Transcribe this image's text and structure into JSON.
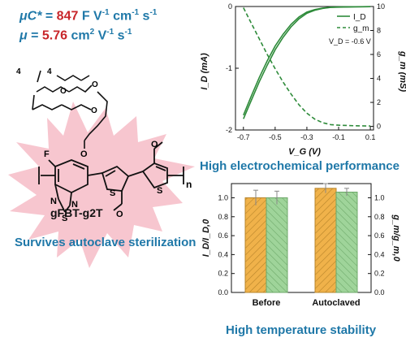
{
  "metrics": {
    "capacitance_symbol": "μC*",
    "capacitance_eq": " = ",
    "capacitance_value": "847",
    "capacitance_unit": " F V",
    "capacitance_unit_exp1": "-1",
    "capacitance_unit_mid": " cm",
    "capacitance_unit_exp2": "-1",
    "capacitance_unit_end": " s",
    "capacitance_unit_exp3": "-1",
    "mobility_symbol": "μ",
    "mobility_eq": " = ",
    "mobility_value": "5.76",
    "mobility_unit": " cm",
    "mobility_unit_exp1": "2",
    "mobility_unit_mid": " V",
    "mobility_unit_exp2": "-1",
    "mobility_unit_end": " s",
    "mobility_unit_exp3": "-1"
  },
  "molecule": {
    "name": "gFBT-g2T",
    "side_chain_index_a": "4",
    "side_chain_index_b": "4",
    "fluorine": "F",
    "oxygen": "O",
    "nitrogen": "N",
    "sulfur": "S",
    "repeat": "n"
  },
  "captions": {
    "left": "Survives autoclave sterilization",
    "top_right": "High electrochemical performance",
    "bottom_right": "High temperature stability"
  },
  "colors": {
    "blue_text": "#1f78a8",
    "red_value": "#c8262a",
    "green_curve": "#2e8b3a",
    "orange_bar": "#f0b24a",
    "green_bar": "#9fd49a",
    "burst": "#f7c6cf"
  },
  "chart_data": [
    {
      "type": "line",
      "title": "",
      "xlabel": "V_G (V)",
      "ylabel": "I_D (mA)",
      "y2label": "g_m (mS)",
      "xlim": [
        -0.75,
        0.12
      ],
      "ylim": [
        -2,
        0
      ],
      "y2lim": [
        -0.3,
        10
      ],
      "x_ticks": [
        "-0.7",
        "-0.5",
        "-0.3",
        "-0.1",
        "0.1"
      ],
      "y_ticks": [
        "-2",
        "-1",
        "0"
      ],
      "y2_ticks": [
        "10",
        "8",
        "6",
        "4",
        "2",
        "0"
      ],
      "legend": [
        "I_D",
        "g_m"
      ],
      "legend_placement": "top-right",
      "annotation": "V_D = -0.6 V",
      "series": [
        {
          "name": "I_D",
          "style": "solid",
          "axis": "left",
          "x": [
            -0.7,
            -0.65,
            -0.6,
            -0.55,
            -0.5,
            -0.45,
            -0.4,
            -0.35,
            -0.3,
            -0.25,
            -0.2,
            -0.15,
            -0.1,
            0.0,
            0.1
          ],
          "y": [
            -1.82,
            -1.52,
            -1.22,
            -0.95,
            -0.7,
            -0.5,
            -0.33,
            -0.2,
            -0.11,
            -0.06,
            -0.03,
            -0.015,
            -0.01,
            -0.005,
            -0.003
          ]
        },
        {
          "name": "I_D",
          "style": "solid",
          "axis": "left",
          "x": [
            -0.7,
            -0.65,
            -0.6,
            -0.55,
            -0.5,
            -0.45,
            -0.4,
            -0.35,
            -0.3,
            -0.25,
            -0.2,
            -0.15,
            -0.1,
            0.0,
            0.1
          ],
          "y": [
            -1.76,
            -1.45,
            -1.15,
            -0.88,
            -0.64,
            -0.45,
            -0.29,
            -0.17,
            -0.09,
            -0.05,
            -0.025,
            -0.012,
            -0.008,
            -0.004,
            -0.002
          ]
        },
        {
          "name": "g_m",
          "style": "dashed",
          "axis": "right",
          "x": [
            -0.7,
            -0.65,
            -0.6,
            -0.55,
            -0.5,
            -0.45,
            -0.4,
            -0.35,
            -0.3,
            -0.25,
            -0.2,
            -0.15,
            -0.1,
            0.0,
            0.1
          ],
          "y": [
            9.9,
            8.6,
            7.3,
            6.0,
            4.8,
            3.7,
            2.7,
            1.8,
            1.1,
            0.6,
            0.3,
            0.15,
            0.1,
            0.05,
            0.03
          ]
        }
      ]
    },
    {
      "type": "bar",
      "title": "",
      "categories": [
        "Before",
        "Autoclaved"
      ],
      "ylabel": "I_D/I_D,0",
      "y2label": "g_m/g_m,0",
      "ylim": [
        0,
        1.15
      ],
      "y_ticks": [
        "0.0",
        "0.2",
        "0.4",
        "0.6",
        "0.8",
        "1.0"
      ],
      "grid": false,
      "series": [
        {
          "name": "I_D/I_D,0",
          "values": [
            1.0,
            1.1
          ],
          "errors": [
            0.08,
            0.05
          ],
          "hatch": "diagonal"
        },
        {
          "name": "g_m/g_m,0",
          "values": [
            1.0,
            1.06
          ],
          "errors": [
            0.07,
            0.04
          ],
          "hatch": "diagonal"
        }
      ]
    }
  ]
}
